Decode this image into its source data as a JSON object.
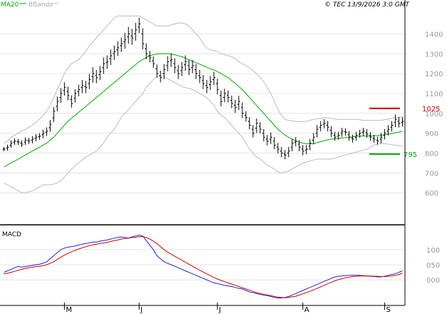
{
  "legend": {
    "ma_label": "MA20",
    "bb_label": "BBands"
  },
  "copyright": "© TEC 13/9/2026 3:0 GMT",
  "macd_label": "MACD",
  "colors": {
    "bars": "#000000",
    "ma": "#00aa00",
    "bbands": "#bbbbbb",
    "macd": "#2222cc",
    "signal": "#cc0000",
    "resistance": "#cc0000",
    "support": "#00aa00",
    "grid": "#e4e4e4",
    "axis_text": "#999999"
  },
  "chart_data": [
    {
      "type": "ohlc",
      "x_labels": [
        {
          "label": "M",
          "index": 17
        },
        {
          "label": "J",
          "index": 38
        },
        {
          "label": "J",
          "index": 60
        },
        {
          "label": "A",
          "index": 84
        },
        {
          "label": "S",
          "index": 107
        }
      ],
      "ylim": [
        450,
        1520
      ],
      "y_ticks": [
        {
          "value": 600,
          "label": "600"
        },
        {
          "value": 700,
          "label": "700"
        },
        {
          "value": 800,
          "label": "800"
        },
        {
          "value": 900,
          "label": "900"
        },
        {
          "value": 1000,
          "label": "1000"
        },
        {
          "value": 1100,
          "label": "1100"
        },
        {
          "value": 1200,
          "label": "1200"
        },
        {
          "value": 1300,
          "label": "1300"
        },
        {
          "value": 1400,
          "label": "1400"
        }
      ],
      "close": [
        820,
        830,
        850,
        860,
        855,
        845,
        865,
        860,
        870,
        880,
        885,
        900,
        910,
        945,
        1010,
        1060,
        1100,
        1130,
        1090,
        1050,
        1100,
        1120,
        1140,
        1130,
        1170,
        1200,
        1180,
        1210,
        1250,
        1260,
        1290,
        1310,
        1330,
        1350,
        1370,
        1400,
        1380,
        1420,
        1450,
        1350,
        1300,
        1280,
        1250,
        1200,
        1180,
        1220,
        1260,
        1270,
        1230,
        1200,
        1230,
        1260,
        1220,
        1240,
        1200,
        1180,
        1150,
        1130,
        1160,
        1180,
        1120,
        1060,
        1100,
        1080,
        1050,
        1030,
        1060,
        1000,
        980,
        940,
        900,
        950,
        920,
        880,
        860,
        880,
        840,
        820,
        800,
        790,
        810,
        850,
        860,
        830,
        810,
        820,
        850,
        880,
        920,
        940,
        950,
        930,
        900,
        880,
        890,
        910,
        905,
        880,
        870,
        890,
        900,
        910,
        895,
        880,
        870,
        860,
        880,
        900,
        920,
        940,
        970,
        950,
        960
      ],
      "ranges": [
        30,
        35,
        40,
        40,
        40,
        40,
        40,
        40,
        45,
        45,
        45,
        50,
        55,
        60,
        60,
        70,
        75,
        75,
        70,
        60,
        60,
        70,
        80,
        80,
        80,
        90,
        80,
        80,
        90,
        90,
        90,
        90,
        90,
        90,
        100,
        100,
        100,
        100,
        90,
        80,
        80,
        70,
        60,
        60,
        70,
        80,
        80,
        90,
        80,
        80,
        80,
        90,
        80,
        80,
        80,
        80,
        80,
        80,
        80,
        80,
        70,
        70,
        70,
        70,
        70,
        80,
        80,
        70,
        60,
        60,
        60,
        70,
        60,
        60,
        60,
        70,
        60,
        60,
        60,
        60,
        60,
        60,
        60,
        60,
        60,
        60,
        60,
        60,
        60,
        60,
        60,
        60,
        60,
        50,
        50,
        50,
        50,
        50,
        50,
        50,
        50,
        50,
        50,
        50,
        50,
        50,
        60,
        60,
        60,
        60,
        70,
        60,
        60
      ],
      "ma20": [
        730,
        740,
        750,
        760,
        770,
        780,
        790,
        800,
        810,
        820,
        830,
        840,
        850,
        865,
        880,
        900,
        920,
        940,
        960,
        975,
        990,
        1005,
        1020,
        1035,
        1050,
        1065,
        1080,
        1095,
        1110,
        1125,
        1140,
        1155,
        1170,
        1185,
        1200,
        1215,
        1230,
        1245,
        1260,
        1270,
        1280,
        1290,
        1295,
        1298,
        1300,
        1300,
        1300,
        1298,
        1295,
        1290,
        1285,
        1278,
        1270,
        1262,
        1255,
        1248,
        1240,
        1232,
        1225,
        1218,
        1210,
        1200,
        1190,
        1180,
        1165,
        1150,
        1135,
        1120,
        1100,
        1080,
        1060,
        1040,
        1020,
        1000,
        980,
        960,
        940,
        920,
        905,
        890,
        880,
        870,
        862,
        855,
        850,
        848,
        847,
        848,
        852,
        857,
        862,
        867,
        870,
        872,
        874,
        876,
        878,
        880,
        882,
        884,
        885,
        886,
        886,
        886,
        887,
        888,
        890,
        892,
        895,
        898,
        902,
        906,
        910
      ],
      "bb_upper": [
        850,
        860,
        880,
        890,
        900,
        910,
        920,
        930,
        940,
        955,
        970,
        990,
        1010,
        1040,
        1080,
        1120,
        1160,
        1200,
        1230,
        1250,
        1260,
        1270,
        1290,
        1310,
        1340,
        1360,
        1380,
        1400,
        1420,
        1440,
        1460,
        1480,
        1490,
        1490,
        1490,
        1490,
        1490,
        1490,
        1490,
        1480,
        1470,
        1460,
        1450,
        1440,
        1440,
        1440,
        1440,
        1445,
        1450,
        1455,
        1455,
        1450,
        1440,
        1420,
        1400,
        1380,
        1350,
        1330,
        1320,
        1315,
        1310,
        1300,
        1295,
        1290,
        1285,
        1275,
        1260,
        1250,
        1240,
        1230,
        1215,
        1200,
        1180,
        1160,
        1130,
        1100,
        1060,
        1020,
        990,
        970,
        965,
        962,
        960,
        958,
        958,
        960,
        965,
        970,
        972,
        975,
        978,
        978,
        975,
        972,
        970,
        970,
        970,
        970,
        970,
        970,
        968,
        965,
        965,
        964,
        964,
        965,
        965,
        968,
        972,
        975,
        978,
        980,
        982
      ],
      "bb_lower": [
        650,
        640,
        630,
        620,
        610,
        600,
        600,
        605,
        610,
        620,
        630,
        640,
        640,
        640,
        645,
        650,
        660,
        680,
        700,
        720,
        735,
        750,
        765,
        780,
        790,
        800,
        810,
        830,
        850,
        880,
        900,
        920,
        950,
        980,
        1000,
        1020,
        1040,
        1060,
        1080,
        1100,
        1130,
        1150,
        1170,
        1185,
        1190,
        1185,
        1175,
        1165,
        1155,
        1145,
        1135,
        1130,
        1125,
        1120,
        1110,
        1100,
        1090,
        1080,
        1060,
        1040,
        1010,
        990,
        980,
        960,
        940,
        920,
        900,
        880,
        850,
        820,
        800,
        780,
        770,
        755,
        740,
        730,
        720,
        705,
        700,
        705,
        710,
        720,
        730,
        740,
        750,
        755,
        760,
        765,
        770,
        770,
        770,
        770,
        770,
        775,
        780,
        785,
        790,
        795,
        800,
        805,
        810,
        815,
        820,
        830,
        840,
        845,
        850,
        848,
        845,
        842,
        840,
        838,
        836
      ],
      "levels": [
        {
          "value": 1025,
          "label": "1025",
          "role": "resistance"
        },
        {
          "value": 795,
          "label": "795",
          "role": "support"
        }
      ]
    },
    {
      "type": "line",
      "title": "MACD",
      "ylim": [
        -75,
        175
      ],
      "y_ticks": [
        {
          "value": 0,
          "label": "000"
        },
        {
          "value": 50,
          "label": "050"
        },
        {
          "value": 100,
          "label": "100"
        }
      ],
      "series": [
        {
          "name": "MACD",
          "values": [
            25,
            30,
            35,
            40,
            45,
            42,
            44,
            46,
            48,
            50,
            52,
            55,
            60,
            70,
            80,
            90,
            100,
            105,
            108,
            110,
            112,
            115,
            118,
            120,
            122,
            125,
            125,
            128,
            130,
            132,
            135,
            138,
            140,
            142,
            140,
            138,
            142,
            145,
            148,
            145,
            130,
            115,
            100,
            80,
            70,
            60,
            55,
            50,
            45,
            40,
            35,
            30,
            25,
            20,
            15,
            10,
            5,
            0,
            -5,
            -10,
            -12,
            -15,
            -18,
            -20,
            -22,
            -25,
            -28,
            -30,
            -35,
            -40,
            -42,
            -45,
            -48,
            -50,
            -52,
            -55,
            -58,
            -60,
            -60,
            -58,
            -55,
            -50,
            -45,
            -40,
            -35,
            -30,
            -25,
            -20,
            -15,
            -10,
            -5,
            0,
            5,
            10,
            12,
            13,
            14,
            15,
            15,
            15,
            15,
            14,
            13,
            12,
            11,
            10,
            10,
            12,
            15,
            18,
            20,
            25,
            30
          ]
        },
        {
          "name": "Signal",
          "values": [
            20,
            22,
            25,
            28,
            32,
            35,
            38,
            40,
            42,
            44,
            45,
            47,
            50,
            55,
            60,
            68,
            75,
            82,
            88,
            93,
            98,
            102,
            106,
            110,
            113,
            116,
            118,
            120,
            122,
            124,
            127,
            130,
            132,
            135,
            137,
            138,
            140,
            141,
            143,
            143,
            140,
            135,
            128,
            120,
            110,
            100,
            92,
            85,
            78,
            72,
            65,
            58,
            52,
            45,
            38,
            32,
            26,
            20,
            14,
            8,
            3,
            -2,
            -6,
            -10,
            -14,
            -18,
            -22,
            -26,
            -30,
            -34,
            -38,
            -42,
            -45,
            -48,
            -50,
            -52,
            -55,
            -57,
            -58,
            -59,
            -58,
            -56,
            -54,
            -50,
            -46,
            -42,
            -38,
            -33,
            -28,
            -23,
            -18,
            -13,
            -8,
            -3,
            1,
            4,
            7,
            9,
            11,
            12,
            13,
            13,
            13,
            13,
            12,
            12,
            11,
            11,
            12,
            13,
            15,
            18,
            22
          ]
        }
      ]
    }
  ]
}
